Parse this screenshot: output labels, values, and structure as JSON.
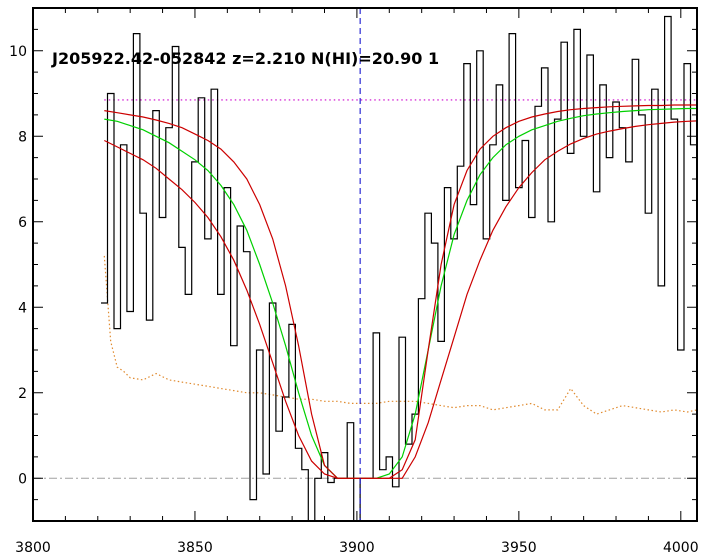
{
  "chart_data": {
    "type": "line",
    "title": "J205922.42-052842 z=2.210 N(HI)=20.90 1",
    "xlabel": "",
    "ylabel": "",
    "xlim": [
      3800,
      4005
    ],
    "ylim": [
      -1,
      11
    ],
    "x_ticks": [
      3800,
      3850,
      3900,
      3950,
      4000
    ],
    "x_tick_labels": [
      "3800",
      "3850",
      "3900",
      "3950",
      "4000"
    ],
    "y_ticks": [
      0,
      2,
      4,
      6,
      8,
      10
    ],
    "y_tick_labels": [
      "0",
      "2",
      "4",
      "6",
      "8",
      "10"
    ],
    "grid": false,
    "line_center": 3901,
    "continuum_level": 8.85,
    "continuum_range": [
      3822,
      4005
    ],
    "zero_level": 0,
    "colors": {
      "spectrum": "#000000",
      "best_fit": "#00d000",
      "fit_bounds": "#cc0000",
      "continuum": "#cc00cc",
      "error": "#e08a2e",
      "center_marker": "#0000cc",
      "zero_line": "#a0a0a0"
    },
    "series": [
      {
        "style": "step",
        "x": [
          3822,
          3824,
          3826,
          3828,
          3830,
          3832,
          3834,
          3836,
          3838,
          3840,
          3842,
          3844,
          3846,
          3848,
          3850,
          3852,
          3854,
          3856,
          3858,
          3860,
          3862,
          3864,
          3866,
          3868,
          3870,
          3872,
          3874,
          3876,
          3878,
          3880,
          3882,
          3884,
          3886,
          3888,
          3890,
          3892,
          3894,
          3896,
          3898,
          3900,
          3902,
          3904,
          3906,
          3908,
          3910,
          3912,
          3914,
          3916,
          3918,
          3920,
          3922,
          3924,
          3926,
          3928,
          3930,
          3932,
          3934,
          3936,
          3938,
          3940,
          3942,
          3944,
          3946,
          3948,
          3950,
          3952,
          3954,
          3956,
          3958,
          3960,
          3962,
          3964,
          3966,
          3968,
          3970,
          3972,
          3974,
          3976,
          3978,
          3980,
          3982,
          3984,
          3986,
          3988,
          3990,
          3992,
          3994,
          3996,
          3998,
          4000,
          4002,
          4004
        ],
        "y": [
          4.1,
          9.0,
          3.5,
          7.8,
          3.9,
          10.4,
          6.2,
          3.7,
          8.6,
          6.1,
          8.2,
          10.1,
          5.4,
          4.3,
          7.4,
          8.9,
          5.6,
          9.1,
          4.3,
          6.8,
          3.1,
          5.9,
          5.3,
          -0.5,
          3.0,
          0.1,
          4.1,
          1.1,
          1.9,
          3.6,
          0.7,
          0.2,
          -1.0,
          0.0,
          0.6,
          -0.1,
          0.0,
          0.0,
          1.3,
          -1.0,
          0.0,
          0.0,
          3.4,
          0.2,
          0.5,
          -0.2,
          3.3,
          0.8,
          1.5,
          4.2,
          6.2,
          5.5,
          3.2,
          6.8,
          5.6,
          7.3,
          9.7,
          6.4,
          10.0,
          5.6,
          7.8,
          9.2,
          6.5,
          10.4,
          6.8,
          7.9,
          6.1,
          8.7,
          9.6,
          6.0,
          8.4,
          10.2,
          7.6,
          10.5,
          8.0,
          9.9,
          6.7,
          9.2,
          7.5,
          8.8,
          8.2,
          7.4,
          9.8,
          8.5,
          6.2,
          9.1,
          4.5,
          10.8,
          8.4,
          3.0,
          9.7,
          7.8
        ]
      },
      {
        "style": "line",
        "x": [
          3822,
          3826,
          3830,
          3834,
          3838,
          3842,
          3846,
          3850,
          3854,
          3858,
          3862,
          3866,
          3870,
          3874,
          3878,
          3882,
          3886,
          3890,
          3894,
          3898,
          3902,
          3906,
          3910,
          3914,
          3918,
          3922,
          3926,
          3930,
          3934,
          3938,
          3942,
          3946,
          3950,
          3954,
          3958,
          3962,
          3966,
          3970,
          3974,
          3978,
          3982,
          3986,
          3990,
          3994,
          3998,
          4002,
          4005
        ],
        "y": [
          8.4,
          8.35,
          8.25,
          8.15,
          8.0,
          7.85,
          7.65,
          7.45,
          7.2,
          6.85,
          6.4,
          5.8,
          5.0,
          4.1,
          3.1,
          2.0,
          1.0,
          0.3,
          0.0,
          0.0,
          0.0,
          0.0,
          0.1,
          0.5,
          1.5,
          3.0,
          4.5,
          5.7,
          6.5,
          7.1,
          7.5,
          7.8,
          8.0,
          8.15,
          8.25,
          8.35,
          8.42,
          8.48,
          8.52,
          8.55,
          8.58,
          8.6,
          8.62,
          8.63,
          8.64,
          8.65,
          8.65
        ]
      },
      {
        "style": "line",
        "x": [
          3822,
          3826,
          3830,
          3834,
          3838,
          3842,
          3846,
          3850,
          3854,
          3858,
          3862,
          3866,
          3870,
          3874,
          3878,
          3882,
          3886,
          3890,
          3894,
          3898,
          3902,
          3906,
          3910,
          3914,
          3918,
          3922,
          3926,
          3930,
          3934,
          3938,
          3942,
          3946,
          3950,
          3954,
          3958,
          3962,
          3966,
          3970,
          3974,
          3978,
          3982,
          3986,
          3990,
          3994,
          3998,
          4002,
          4005
        ],
        "y": [
          8.6,
          8.55,
          8.5,
          8.45,
          8.38,
          8.3,
          8.2,
          8.05,
          7.9,
          7.7,
          7.4,
          7.0,
          6.4,
          5.6,
          4.5,
          3.1,
          1.5,
          0.3,
          0.0,
          0.0,
          0.0,
          0.0,
          0.0,
          0.2,
          0.9,
          3.0,
          5.0,
          6.4,
          7.2,
          7.7,
          8.0,
          8.2,
          8.35,
          8.45,
          8.52,
          8.58,
          8.62,
          8.65,
          8.67,
          8.69,
          8.7,
          8.71,
          8.72,
          8.72,
          8.73,
          8.73,
          8.73
        ]
      },
      {
        "style": "line",
        "x": [
          3822,
          3826,
          3830,
          3834,
          3838,
          3842,
          3846,
          3850,
          3854,
          3858,
          3862,
          3866,
          3870,
          3874,
          3878,
          3882,
          3886,
          3890,
          3894,
          3898,
          3902,
          3906,
          3910,
          3914,
          3918,
          3922,
          3926,
          3930,
          3934,
          3938,
          3942,
          3946,
          3950,
          3954,
          3958,
          3962,
          3966,
          3970,
          3974,
          3978,
          3982,
          3986,
          3990,
          3994,
          3998,
          4002,
          4005
        ],
        "y": [
          7.9,
          7.75,
          7.6,
          7.45,
          7.25,
          7.0,
          6.75,
          6.45,
          6.1,
          5.65,
          5.1,
          4.4,
          3.6,
          2.7,
          1.8,
          1.0,
          0.4,
          0.1,
          0.0,
          0.0,
          0.0,
          0.0,
          0.0,
          0.0,
          0.5,
          1.3,
          2.3,
          3.3,
          4.3,
          5.1,
          5.8,
          6.35,
          6.8,
          7.15,
          7.45,
          7.65,
          7.82,
          7.95,
          8.05,
          8.12,
          8.18,
          8.23,
          8.27,
          8.3,
          8.33,
          8.35,
          8.36
        ]
      },
      {
        "style": "dotted",
        "x": [
          3822,
          3824,
          3826,
          3828,
          3830,
          3834,
          3838,
          3842,
          3846,
          3850,
          3854,
          3858,
          3862,
          3866,
          3870,
          3874,
          3878,
          3882,
          3886,
          3890,
          3894,
          3898,
          3902,
          3906,
          3910,
          3914,
          3918,
          3922,
          3926,
          3930,
          3934,
          3938,
          3942,
          3946,
          3950,
          3954,
          3958,
          3962,
          3966,
          3970,
          3974,
          3978,
          3982,
          3986,
          3990,
          3994,
          3998,
          4002,
          4005
        ],
        "y": [
          5.2,
          3.2,
          2.6,
          2.5,
          2.35,
          2.3,
          2.45,
          2.3,
          2.25,
          2.2,
          2.15,
          2.1,
          2.05,
          2.0,
          2.0,
          1.95,
          1.9,
          1.85,
          1.85,
          1.8,
          1.8,
          1.75,
          1.75,
          1.75,
          1.8,
          1.8,
          1.8,
          1.75,
          1.7,
          1.65,
          1.7,
          1.7,
          1.6,
          1.65,
          1.7,
          1.75,
          1.6,
          1.6,
          2.1,
          1.7,
          1.5,
          1.6,
          1.7,
          1.65,
          1.6,
          1.55,
          1.6,
          1.55,
          1.6
        ]
      }
    ]
  }
}
